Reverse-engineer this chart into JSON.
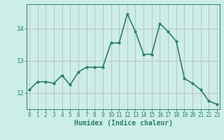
{
  "x": [
    0,
    1,
    2,
    3,
    4,
    5,
    6,
    7,
    8,
    9,
    10,
    11,
    12,
    13,
    14,
    15,
    16,
    17,
    18,
    19,
    20,
    21,
    22,
    23
  ],
  "y": [
    12.1,
    12.35,
    12.35,
    12.3,
    12.55,
    12.25,
    12.65,
    12.8,
    12.8,
    12.8,
    13.55,
    13.55,
    14.45,
    13.9,
    13.2,
    13.2,
    14.15,
    13.9,
    13.6,
    12.45,
    12.3,
    12.1,
    11.75,
    11.65
  ],
  "line_color": "#2e7d6e",
  "marker": "o",
  "marker_size": 2,
  "bg_color": "#cceee8",
  "grid_major_color": "#c0b8c8",
  "grid_minor_color": "#c0b8c8",
  "tick_color": "#2e7d6e",
  "xlabel": "Humidex (Indice chaleur)",
  "xlabel_fontsize": 7,
  "ylim": [
    11.5,
    14.75
  ],
  "yticks": [
    12,
    13,
    14
  ],
  "xticks": [
    0,
    1,
    2,
    3,
    4,
    5,
    6,
    7,
    8,
    9,
    10,
    11,
    12,
    13,
    14,
    15,
    16,
    17,
    18,
    19,
    20,
    21,
    22,
    23
  ],
  "line_width": 1.2
}
